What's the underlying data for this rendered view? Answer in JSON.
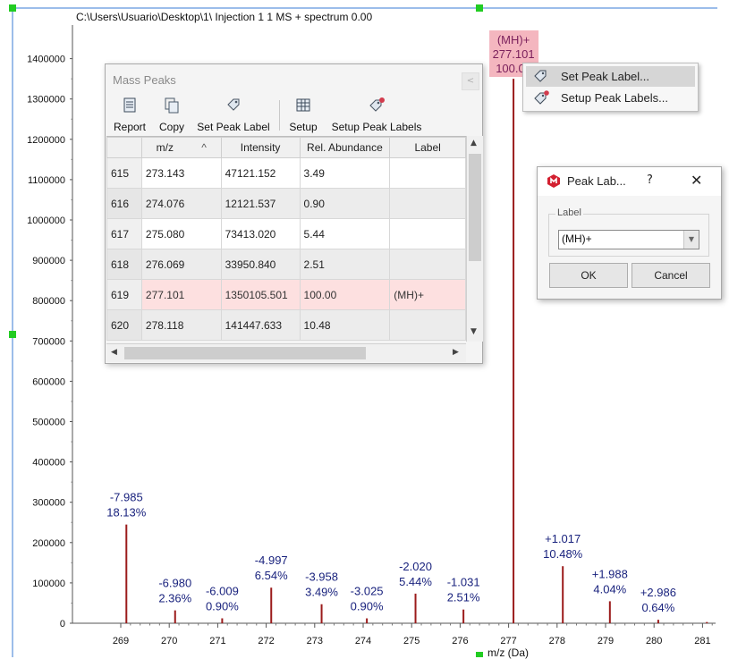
{
  "spectrum": {
    "title": "C:\\Users\\Usuario\\Desktop\\1\\ Injection 1 1 MS + spectrum 0.00",
    "x_axis_label": "m/z (Da)"
  },
  "chart_data": {
    "type": "bar",
    "title": "C:\\Users\\Usuario\\Desktop\\1\\ Injection 1 1 MS + spectrum 0.00",
    "xlabel": "m/z (Da)",
    "ylabel": "",
    "xlim": [
      268.7,
      281.2
    ],
    "ylim": [
      0,
      1480000
    ],
    "x_ticks": [
      269,
      270,
      271,
      272,
      273,
      274,
      275,
      276,
      277,
      278,
      279,
      280,
      281
    ],
    "y_ticks": [
      0,
      100000,
      200000,
      300000,
      400000,
      500000,
      600000,
      700000,
      800000,
      900000,
      1000000,
      1100000,
      1200000,
      1300000,
      1400000
    ],
    "bar_color": "#9b1b1b",
    "peaks": [
      {
        "mz": 269.116,
        "intensity": 244800,
        "label": "-7.985",
        "abundance": "18.13%"
      },
      {
        "mz": 270.121,
        "intensity": 31900,
        "label": "-6.980",
        "abundance": "2.36%"
      },
      {
        "mz": 271.092,
        "intensity": 12200,
        "label": "-6.009",
        "abundance": "0.90%"
      },
      {
        "mz": 272.104,
        "intensity": 88200,
        "label": "-4.997",
        "abundance": "6.54%"
      },
      {
        "mz": 273.143,
        "intensity": 47121,
        "label": "-3.958",
        "abundance": "3.49%"
      },
      {
        "mz": 274.076,
        "intensity": 12121,
        "label": "-3.025",
        "abundance": "0.90%"
      },
      {
        "mz": 275.08,
        "intensity": 73413,
        "label": "-2.020",
        "abundance": "5.44%"
      },
      {
        "mz": 276.069,
        "intensity": 33950,
        "label": "-1.031",
        "abundance": "2.51%"
      },
      {
        "mz": 277.101,
        "intensity": 1350105,
        "label": "(MH)+",
        "mz_label": "277.101",
        "abundance": "100.00",
        "highlight": true
      },
      {
        "mz": 278.118,
        "intensity": 141447,
        "label": "+1.017",
        "abundance": "10.48%"
      },
      {
        "mz": 279.089,
        "intensity": 54500,
        "label": "+1.988",
        "abundance": "4.04%"
      },
      {
        "mz": 280.087,
        "intensity": 8600,
        "label": "+2.986",
        "abundance": "0.64%"
      },
      {
        "mz": 281.09,
        "intensity": 3000
      }
    ]
  },
  "mass_peaks": {
    "title": "Mass Peaks",
    "close_label": "<",
    "toolbar": [
      {
        "label": "Report",
        "icon": "report-icon"
      },
      {
        "label": "Copy",
        "icon": "copy-icon"
      },
      {
        "label": "Set Peak Label",
        "icon": "tag-icon"
      },
      {
        "label": "Setup",
        "icon": "grid-setup-icon"
      },
      {
        "label": "Setup Peak Labels",
        "icon": "tags-setup-icon"
      }
    ],
    "columns": [
      "m/z",
      "Intensity",
      "Rel. Abundance",
      "Label"
    ],
    "sort_indicator": "^",
    "rows": [
      {
        "n": "615",
        "mz": "273.143",
        "intensity": "47121.152",
        "abundance": "3.49",
        "label": ""
      },
      {
        "n": "616",
        "mz": "274.076",
        "intensity": "12121.537",
        "abundance": "0.90",
        "label": ""
      },
      {
        "n": "617",
        "mz": "275.080",
        "intensity": "73413.020",
        "abundance": "5.44",
        "label": ""
      },
      {
        "n": "618",
        "mz": "276.069",
        "intensity": "33950.840",
        "abundance": "2.51",
        "label": ""
      },
      {
        "n": "619",
        "mz": "277.101",
        "intensity": "1350105.501",
        "abundance": "100.00",
        "label": "(MH)+",
        "selected": true
      },
      {
        "n": "620",
        "mz": "278.118",
        "intensity": "141447.633",
        "abundance": "10.48",
        "label": ""
      }
    ]
  },
  "context_menu": {
    "items": [
      {
        "label": "Set Peak Label...",
        "icon": "tag-icon",
        "highlighted": true
      },
      {
        "label": "Setup Peak Labels...",
        "icon": "tags-setup-icon",
        "highlighted": false
      }
    ]
  },
  "peak_dialog": {
    "title": "Peak Lab...",
    "help": "?",
    "close": "✕",
    "group_label": "Label",
    "input_value": "(MH)+",
    "dropdown_arrow": "▼",
    "ok": "OK",
    "cancel": "Cancel"
  },
  "colors": {
    "peak": "#9b1b1b",
    "annotation": "#1a237e",
    "highlight_bg": "#f4b6bf",
    "highlight_text": "#7a1f5b",
    "selection_handle": "#22cc22",
    "selection_line": "#3a7bd5"
  }
}
